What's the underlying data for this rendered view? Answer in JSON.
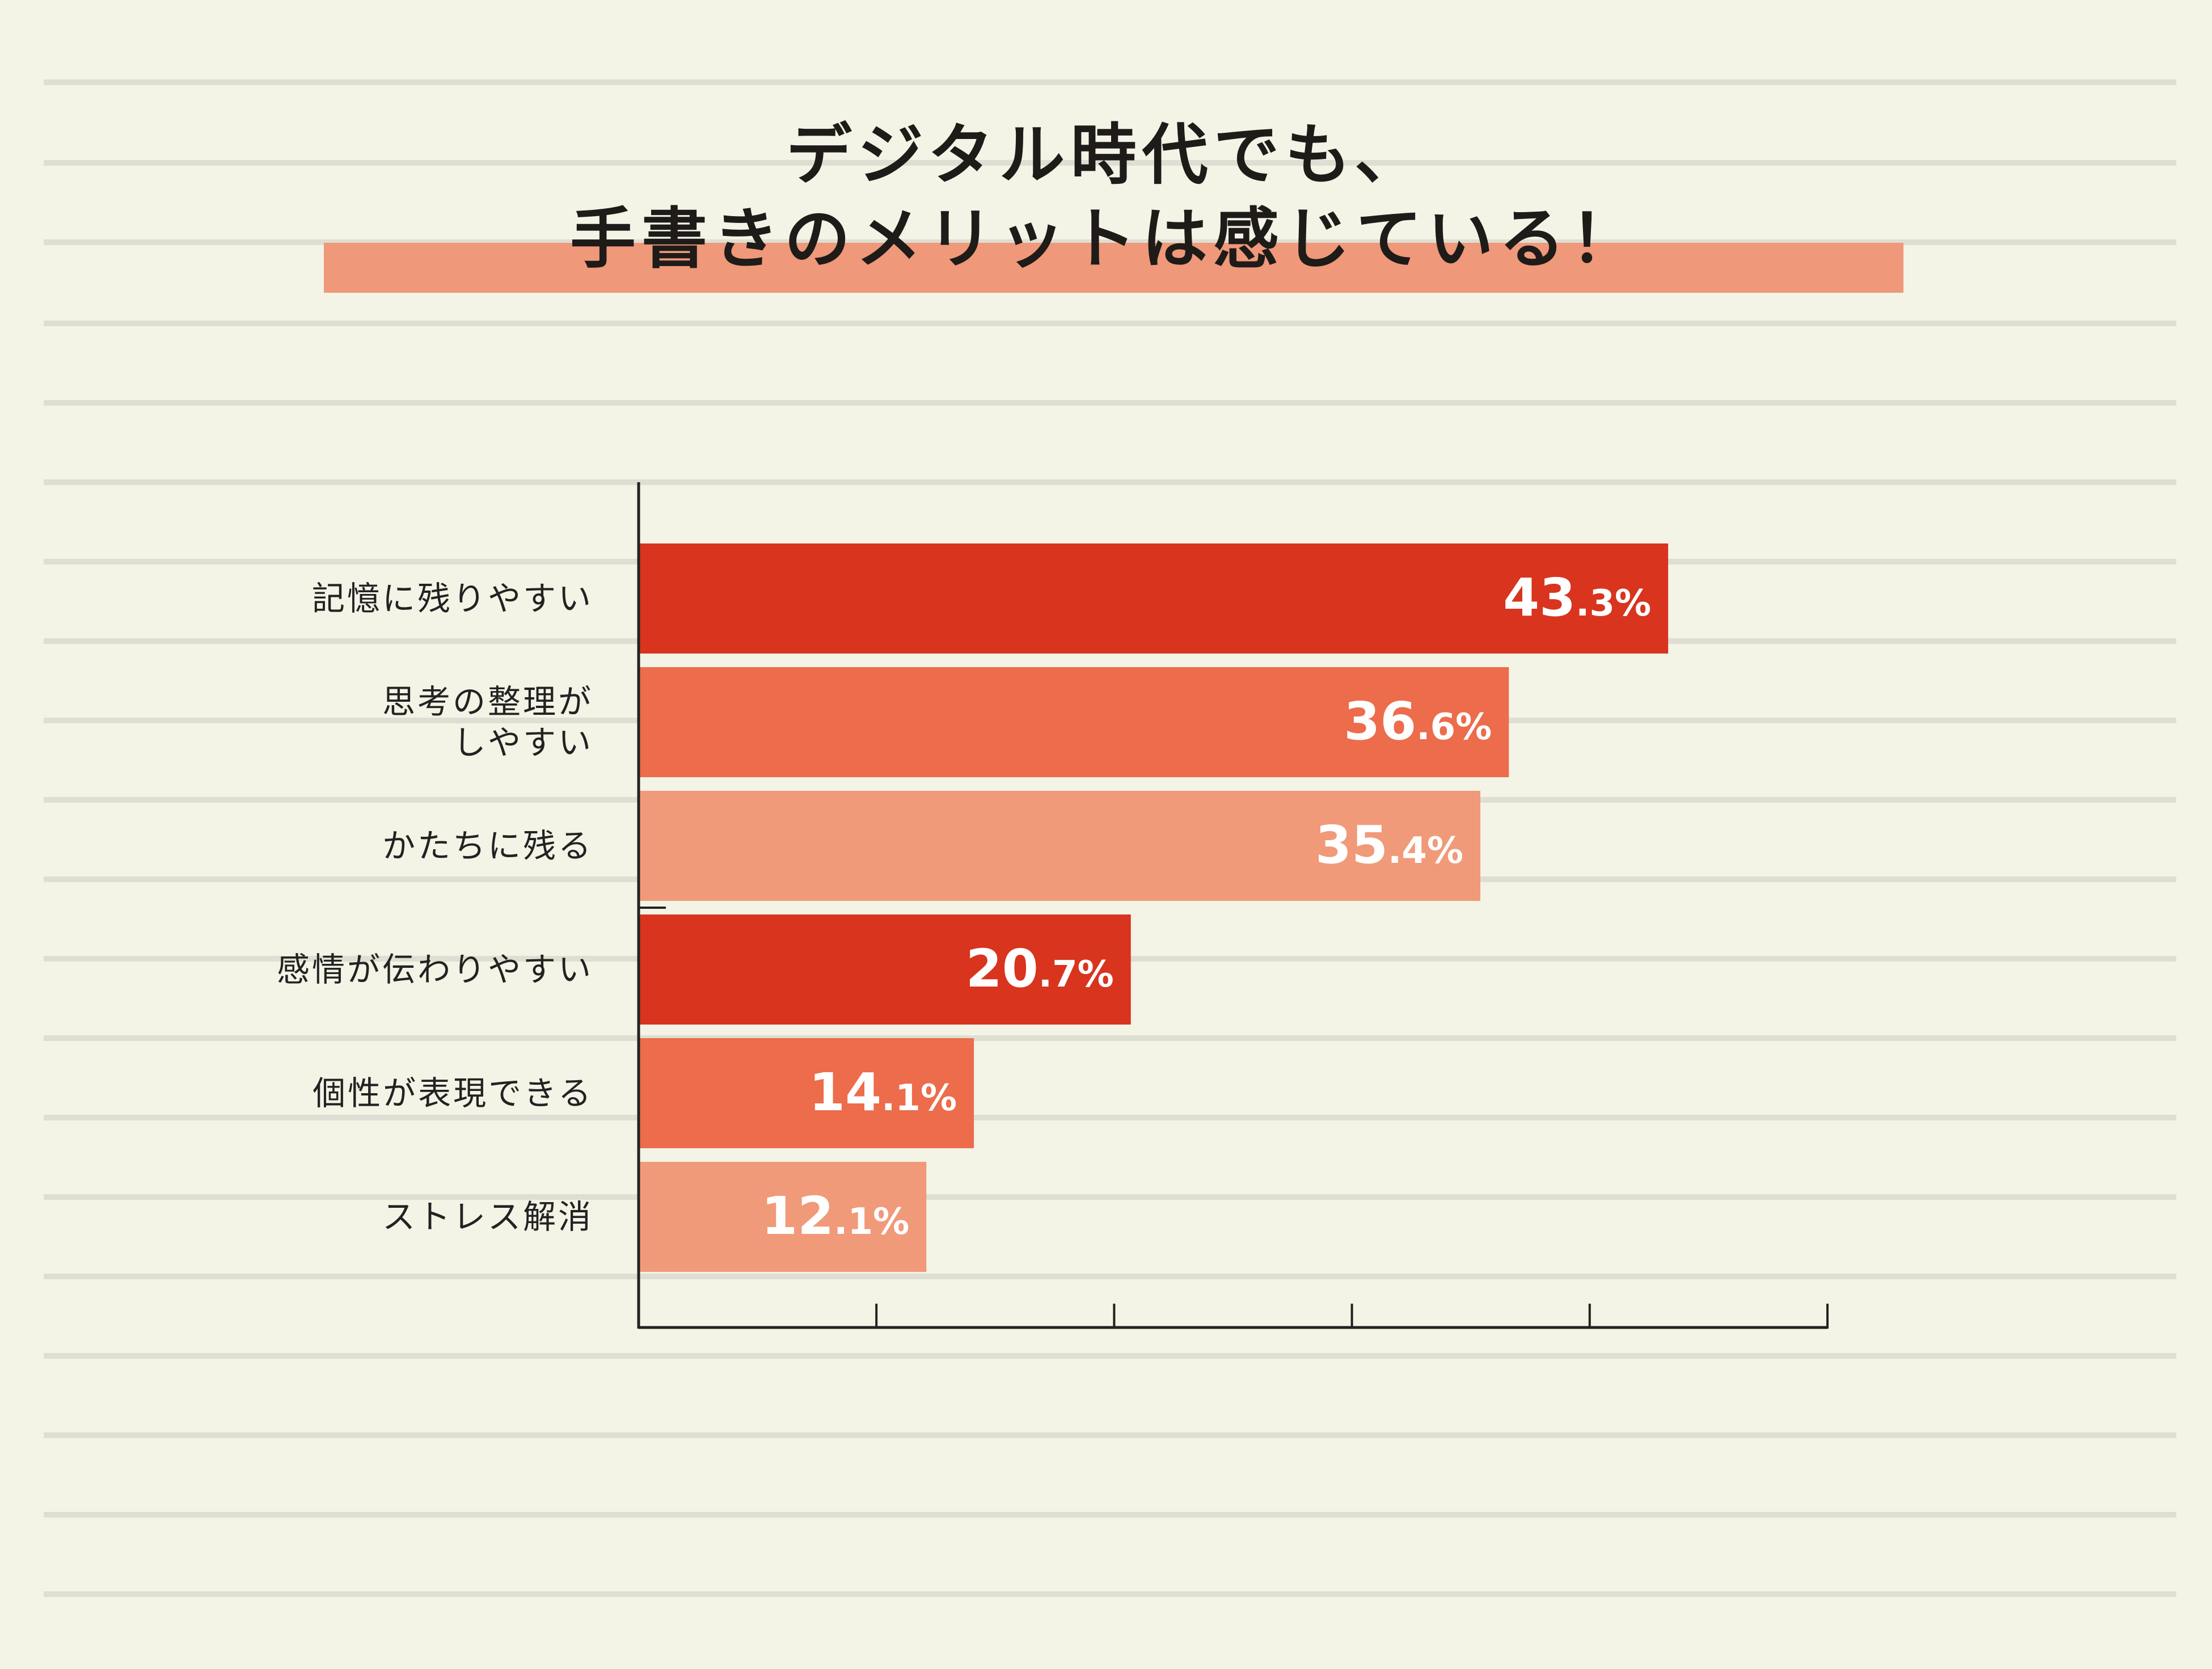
{
  "title": {
    "line1": "デジタル時代でも、",
    "line2": "手書きのメリットは感じている！"
  },
  "colors": {
    "background": "#f3f3e6",
    "rule_line": "#dfded2",
    "title_band": "#ef987a",
    "axis": "#222222",
    "bar_dark": "#d8341e",
    "bar_mid": "#ec6c4b",
    "bar_light": "#f09a79"
  },
  "chart_data": {
    "type": "bar",
    "orientation": "horizontal",
    "categories": [
      [
        "記憶に残りやすい"
      ],
      [
        "思考の整理が",
        "しやすい"
      ],
      [
        "かたちに残る"
      ],
      [
        "感情が伝わりやすい"
      ],
      [
        "個性が表現できる"
      ],
      [
        "ストレス解消"
      ]
    ],
    "values": [
      43.3,
      36.6,
      35.4,
      20.7,
      14.1,
      12.1
    ],
    "value_labels": [
      {
        "int": "43",
        "dec": ".3%"
      },
      {
        "int": "36",
        "dec": ".6%"
      },
      {
        "int": "35",
        "dec": ".4%"
      },
      {
        "int": "20",
        "dec": ".7%"
      },
      {
        "int": "14",
        "dec": ".1%"
      },
      {
        "int": "12",
        "dec": ".1%"
      }
    ],
    "bar_colors": [
      "#d8341e",
      "#ec6c4b",
      "#f09a79",
      "#d8341e",
      "#ec6c4b",
      "#f09a79"
    ],
    "xlim": [
      0,
      50
    ],
    "x_ticks": [
      0,
      10,
      20,
      30,
      40,
      50
    ],
    "x_tick_labels_shown": false,
    "grid": false,
    "legend": "none"
  }
}
